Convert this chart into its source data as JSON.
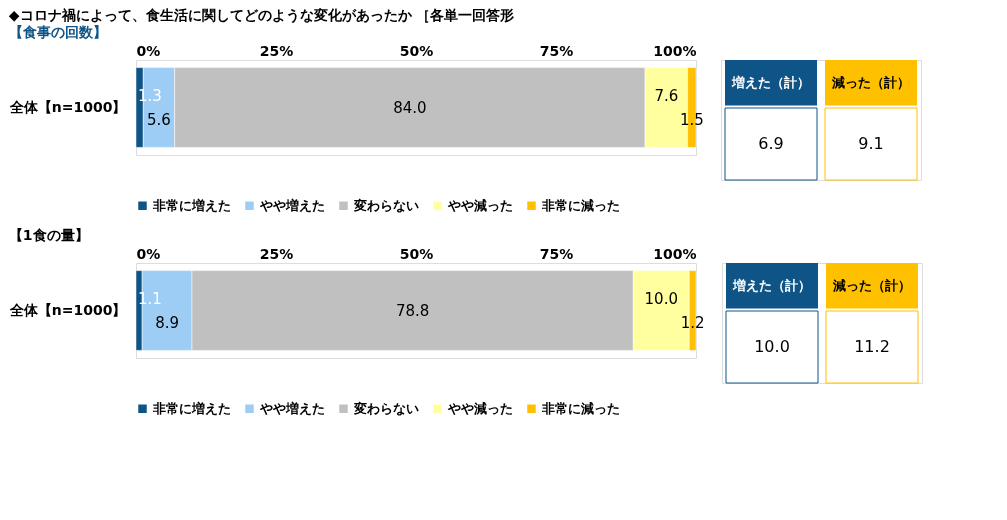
{
  "chart_data": [
    {
      "type": "bar",
      "orientation": "horizontal",
      "stacked": true,
      "title": "◆コロナ禍によって、食生活に関してどのような変化があったか ［各単一回答形",
      "subtitle": "【食事の回数】",
      "categories": [
        "全体【n=1000】"
      ],
      "series": [
        {
          "name": "非常に増えた",
          "color": "#0f5486",
          "values": [
            1.3
          ],
          "value_labels": [
            "1.3"
          ]
        },
        {
          "name": "やや増えた",
          "color": "#9dcdf5",
          "values": [
            5.6
          ],
          "value_labels": [
            "5.6"
          ]
        },
        {
          "name": "変わらない",
          "color": "#c0c0c0",
          "values": [
            84.0
          ],
          "value_labels": [
            "84.0"
          ]
        },
        {
          "name": "やや減った",
          "color": "#ffffa0",
          "values": [
            7.6
          ],
          "value_labels": [
            "7.6"
          ]
        },
        {
          "name": "非常に減った",
          "color": "#ffc000",
          "values": [
            1.5
          ],
          "value_labels": [
            "1.5"
          ]
        }
      ],
      "xlim": [
        0,
        100
      ],
      "xticks": [
        {
          "value": 0,
          "label": "0%"
        },
        {
          "value": 25,
          "label": "25%"
        },
        {
          "value": 50,
          "label": "50%"
        },
        {
          "value": 75,
          "label": "75%"
        },
        {
          "value": 100,
          "label": "100%"
        }
      ],
      "legend": "bottom",
      "grid": false,
      "annotations": [
        "増えた（計）",
        "6.9",
        "減った（計）",
        "9.1"
      ]
    },
    {
      "type": "bar",
      "orientation": "horizontal",
      "stacked": true,
      "title": "【1食の量】",
      "categories": [
        "全体【n=1000】"
      ],
      "series": [
        {
          "name": "非常に増えた",
          "color": "#0f5486",
          "values": [
            1.1
          ],
          "value_labels": [
            "1.1"
          ]
        },
        {
          "name": "やや増えた",
          "color": "#9dcdf5",
          "values": [
            8.9
          ],
          "value_labels": [
            "8.9"
          ]
        },
        {
          "name": "変わらない",
          "color": "#c0c0c0",
          "values": [
            78.8
          ],
          "value_labels": [
            "78.8"
          ]
        },
        {
          "name": "やや減った",
          "color": "#ffffa0",
          "values": [
            10.0
          ],
          "value_labels": [
            "10.0"
          ]
        },
        {
          "name": "非常に減った",
          "color": "#ffc000",
          "values": [
            1.2
          ],
          "value_labels": [
            "1.2"
          ]
        }
      ],
      "xlim": [
        0,
        100
      ],
      "xticks": [
        {
          "value": 0,
          "label": "0%"
        },
        {
          "value": 25,
          "label": "25%"
        },
        {
          "value": 50,
          "label": "50%"
        },
        {
          "value": 75,
          "label": "75%"
        },
        {
          "value": 100,
          "label": "100%"
        }
      ],
      "legend": "bottom",
      "grid": false,
      "annotations": [
        "増えた（計）",
        "10.0",
        "減った（計）",
        "11.2"
      ]
    }
  ]
}
